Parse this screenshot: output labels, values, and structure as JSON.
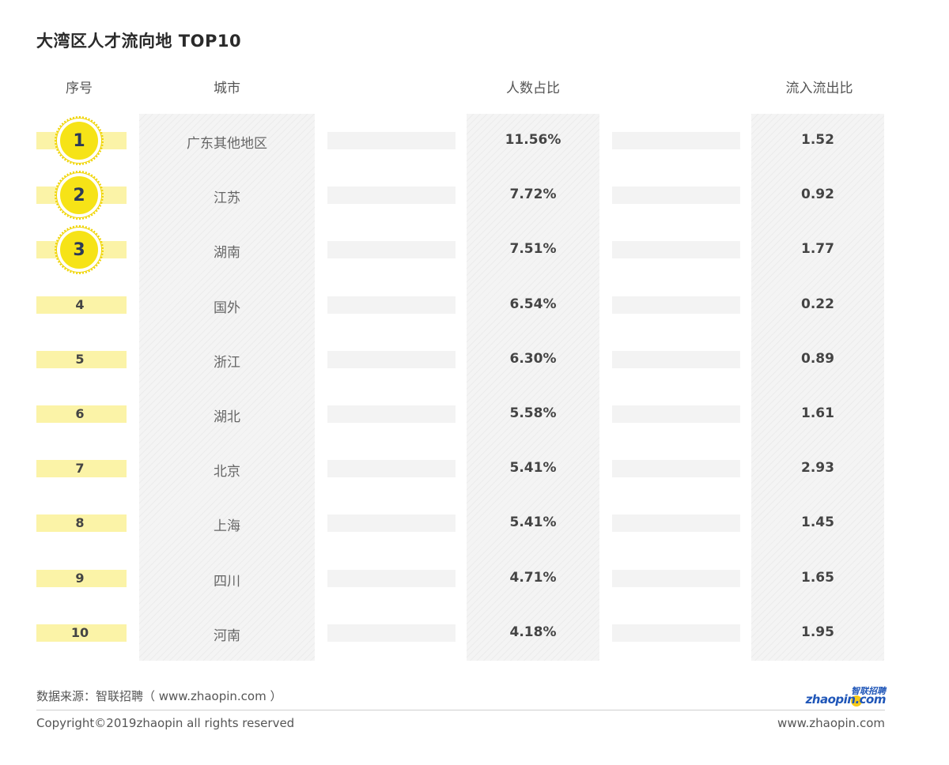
{
  "title": "大湾区人才流向地 TOP10",
  "headers": {
    "rank": "序号",
    "city": "城市",
    "share": "人数占比",
    "ratio": "流入流出比"
  },
  "chart_data": {
    "type": "table",
    "title": "大湾区人才流向地 TOP10",
    "columns": [
      "序号",
      "城市",
      "人数占比",
      "流入流出比"
    ],
    "rows": [
      {
        "rank": "1",
        "city": "广东其他地区",
        "share": "11.56%",
        "ratio": "1.52"
      },
      {
        "rank": "2",
        "city": "江苏",
        "share": "7.72%",
        "ratio": "0.92"
      },
      {
        "rank": "3",
        "city": "湖南",
        "share": "7.51%",
        "ratio": "1.77"
      },
      {
        "rank": "4",
        "city": "国外",
        "share": "6.54%",
        "ratio": "0.22"
      },
      {
        "rank": "5",
        "city": "浙江",
        "share": "6.30%",
        "ratio": "0.89"
      },
      {
        "rank": "6",
        "city": "湖北",
        "share": "5.58%",
        "ratio": "1.61"
      },
      {
        "rank": "7",
        "city": "北京",
        "share": "5.41%",
        "ratio": "2.93"
      },
      {
        "rank": "8",
        "city": "上海",
        "share": "5.41%",
        "ratio": "1.45"
      },
      {
        "rank": "9",
        "city": "四川",
        "share": "4.71%",
        "ratio": "1.65"
      },
      {
        "rank": "10",
        "city": "河南",
        "share": "4.18%",
        "ratio": "1.95"
      }
    ]
  },
  "colors": {
    "medal": "#f6e317",
    "rank_bar": "#fbf3a7",
    "medal_text": "#2b3a58",
    "brand": "#1f56b8"
  },
  "footer": {
    "source": "数据来源：智联招聘（ www.zhaopin.com ）",
    "copyright": "Copyright©2019zhaopin all rights reserved",
    "url": "www.zhaopin.com"
  },
  "logo": {
    "cn": "智联招聘",
    "en": "zhaopin.com"
  }
}
